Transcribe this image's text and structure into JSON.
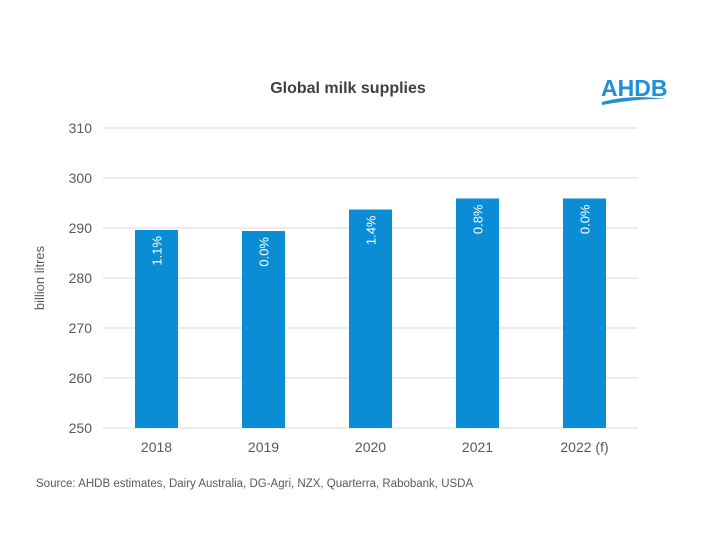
{
  "chart_data": {
    "type": "bar",
    "title": "Global milk supplies",
    "xlabel": "",
    "ylabel": "billion litres",
    "ylim": [
      250,
      310
    ],
    "yticks": [
      250,
      260,
      270,
      280,
      290,
      300,
      310
    ],
    "grid": true,
    "categories": [
      "2018",
      "2019",
      "2020",
      "2021",
      "2022 (f)"
    ],
    "values": [
      289.6,
      289.4,
      293.7,
      295.9,
      295.9
    ],
    "data_labels": [
      "1.1%",
      "0.0%",
      "1.4%",
      "0.8%",
      "0.0%"
    ],
    "bar_color": "#0A8DD5",
    "legend": "none"
  },
  "logo": {
    "text": "AHDB",
    "color": "#1F8FD6"
  },
  "source": "Source: AHDB estimates, Dairy Australia, DG-Agri, NZX, Quarterra, Rabobank, USDA"
}
